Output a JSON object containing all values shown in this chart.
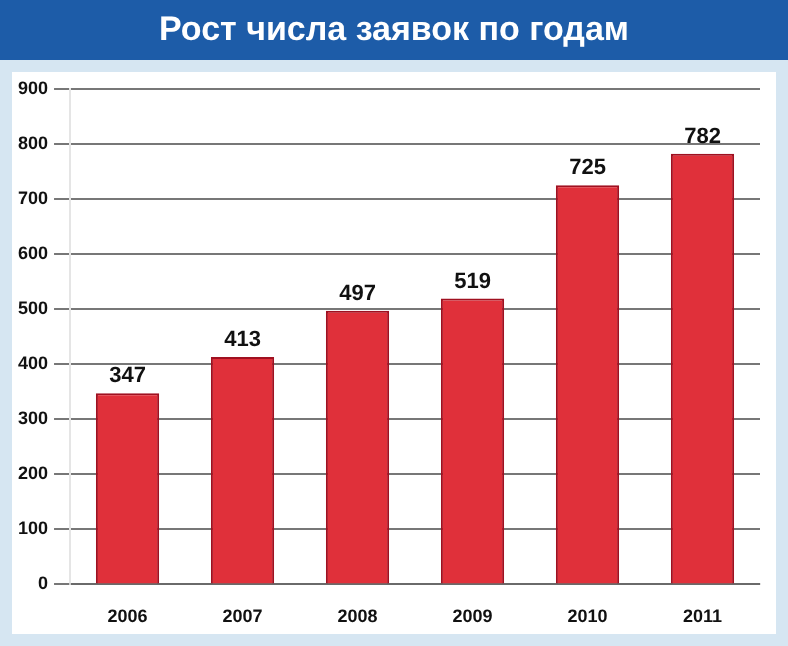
{
  "chart_data": {
    "type": "bar",
    "title": "Рост числа заявок по годам",
    "categories": [
      "2006",
      "2007",
      "2008",
      "2009",
      "2010",
      "2011"
    ],
    "values": [
      347,
      413,
      497,
      519,
      725,
      782
    ],
    "color": "#e0303a",
    "ylim": [
      0,
      900
    ],
    "yticks": [
      0,
      100,
      200,
      300,
      400,
      500,
      600,
      700,
      800,
      900
    ],
    "grid": "y",
    "data_labels": true
  }
}
